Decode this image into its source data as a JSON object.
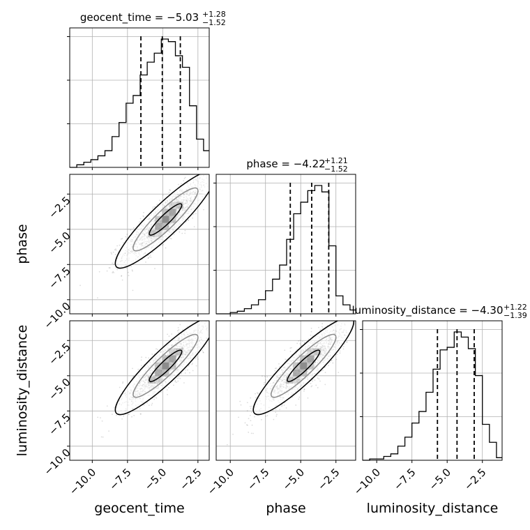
{
  "chart_data": {
    "type": "corner",
    "parameters": [
      "geocent_time",
      "phase",
      "luminosity_distance"
    ],
    "axis_labels": [
      "geocent_time",
      "phase",
      "luminosity_distance"
    ],
    "ranges": [
      [
        -11.6,
        -1.7
      ],
      [
        -11.0,
        -1.1
      ],
      [
        -11.0,
        -1.1
      ]
    ],
    "ticks": [
      -10.0,
      -7.5,
      -5.0,
      -2.5
    ],
    "tick_labels": [
      "−10.0",
      "−7.5",
      "−5.0",
      "−2.5"
    ],
    "grid": true,
    "titles": [
      {
        "text": "geocent_time = −5.03",
        "sup": "+1.28",
        "sub": "−1.52"
      },
      {
        "text": "phase = −4.22",
        "sup": "+1.21",
        "sub": "−1.52"
      },
      {
        "text": "luminosity_distance = −4.30",
        "sup": "+1.22",
        "sub": "−1.39"
      }
    ],
    "quantiles": [
      {
        "q16": -6.55,
        "q50": -5.03,
        "q84": -3.75
      },
      {
        "q16": -5.74,
        "q50": -4.22,
        "q84": -3.01
      },
      {
        "q16": -5.69,
        "q50": -4.3,
        "q84": -3.08
      }
    ],
    "histograms": [
      {
        "bins": [
          -11.6,
          -11.1,
          -10.6,
          -10.1,
          -9.6,
          -9.1,
          -8.6,
          -8.1,
          -7.6,
          -7.1,
          -6.6,
          -6.1,
          -5.6,
          -5.1,
          -4.6,
          -4.1,
          -3.6,
          -3.1,
          -2.6,
          -2.1,
          -1.6
        ],
        "counts": [
          0,
          0.02,
          0.04,
          0.06,
          0.09,
          0.13,
          0.24,
          0.35,
          0.5,
          0.56,
          0.72,
          0.82,
          0.89,
          1.0,
          0.98,
          0.87,
          0.78,
          0.48,
          0.22,
          0.13
        ]
      },
      {
        "bins": [
          -11.0,
          -10.5,
          -10.0,
          -9.5,
          -9.0,
          -8.5,
          -8.0,
          -7.5,
          -7.0,
          -6.5,
          -6.0,
          -5.5,
          -5.0,
          -4.5,
          -4.0,
          -3.5,
          -3.0,
          -2.5,
          -2.0,
          -1.5,
          -1.0
        ],
        "counts": [
          0,
          0,
          0.01,
          0.02,
          0.04,
          0.07,
          0.11,
          0.18,
          0.27,
          0.38,
          0.58,
          0.78,
          0.87,
          0.96,
          1.0,
          0.95,
          0.53,
          0.14,
          0.07,
          0.03
        ]
      },
      {
        "bins": [
          -11.0,
          -10.5,
          -10.0,
          -9.5,
          -9.0,
          -8.5,
          -8.0,
          -7.5,
          -7.0,
          -6.5,
          -6.0,
          -5.5,
          -5.0,
          -4.5,
          -4.0,
          -3.5,
          -3.0,
          -2.5,
          -2.0,
          -1.5,
          -1.0
        ],
        "counts": [
          0,
          0.01,
          0.01,
          0.03,
          0.05,
          0.11,
          0.18,
          0.29,
          0.38,
          0.53,
          0.71,
          0.86,
          0.88,
          1.0,
          0.96,
          0.87,
          0.66,
          0.28,
          0.14,
          0.02
        ]
      }
    ],
    "density_peak": {
      "x_mean": -4.8,
      "y_mean": -4.3,
      "x_std": 1.5,
      "y_std": 1.45,
      "correlation": 0.86
    },
    "colors": {
      "line": "#000000",
      "grid": "#b0b0b0",
      "samples": "#000000"
    }
  }
}
